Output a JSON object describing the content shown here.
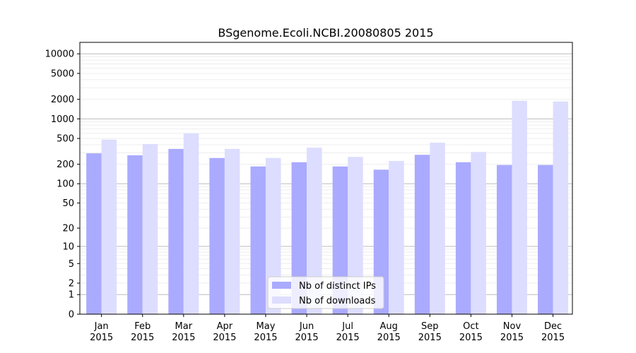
{
  "chart_data": {
    "type": "bar",
    "title": "BSgenome.Ecoli.NCBI.20080805 2015",
    "xlabel": "",
    "ylabel": "",
    "y_scale": "log1p",
    "ylim": [
      0,
      15000
    ],
    "y_ticks": [
      0,
      1,
      2,
      5,
      10,
      20,
      50,
      100,
      200,
      500,
      1000,
      2000,
      5000,
      10000
    ],
    "categories": [
      "Jan\n2015",
      "Feb\n2015",
      "Mar\n2015",
      "Apr\n2015",
      "May\n2015",
      "Jun\n2015",
      "Jul\n2015",
      "Aug\n2015",
      "Sep\n2015",
      "Oct\n2015",
      "Nov\n2015",
      "Dec\n2015"
    ],
    "series": [
      {
        "name": "Nb of distinct IPs",
        "color": "#aaaaff",
        "values": [
          295,
          275,
          345,
          250,
          185,
          215,
          185,
          165,
          280,
          215,
          195,
          195
        ]
      },
      {
        "name": "Nb of downloads",
        "color": "#ddddff",
        "values": [
          480,
          410,
          600,
          345,
          250,
          360,
          260,
          225,
          430,
          310,
          1900,
          1850
        ]
      }
    ],
    "grid": true,
    "legend_position": "bottom-center"
  }
}
